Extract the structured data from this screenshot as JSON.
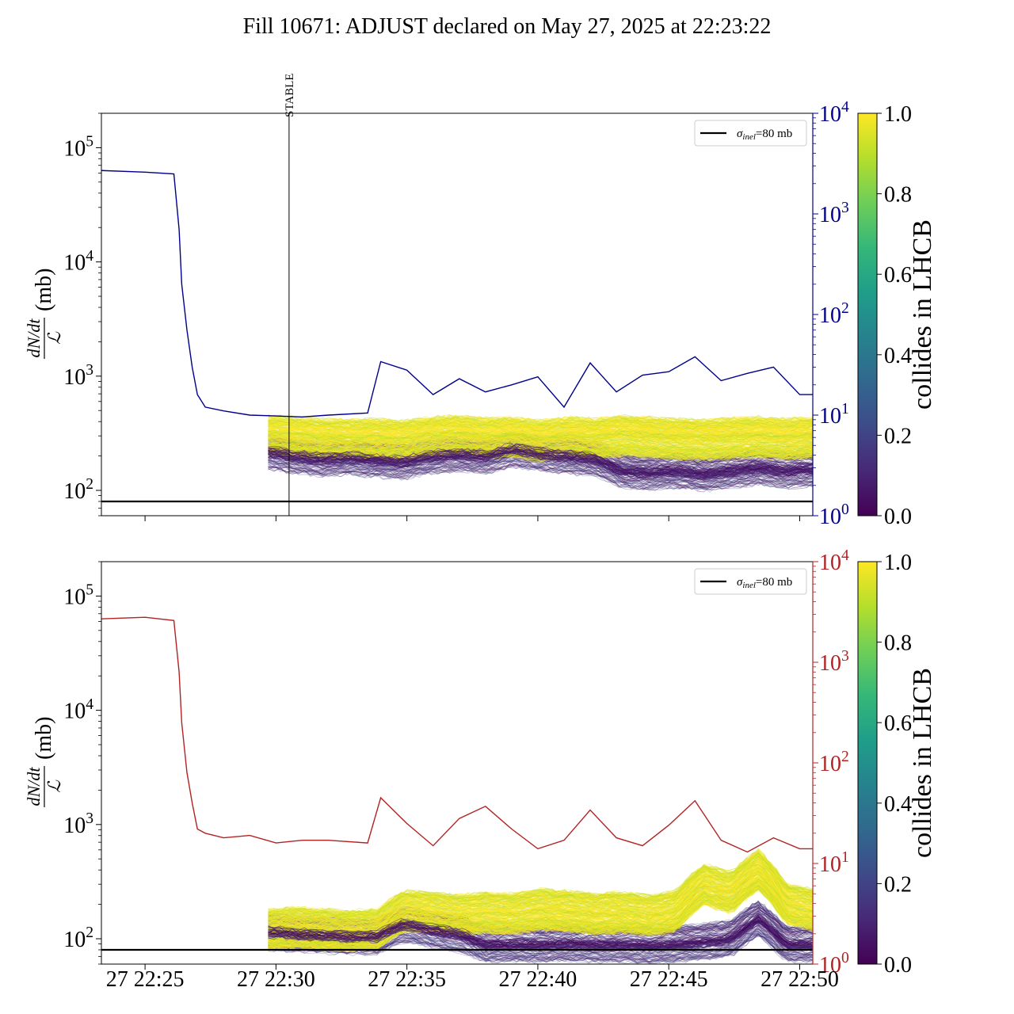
{
  "title": "Fill 10671: ADJUST declared on May 27, 2025 at 22:23:22",
  "colors": {
    "top_line": "#00008b",
    "bottom_line": "#b22222",
    "viridis": [
      "#440154",
      "#482878",
      "#3e4a89",
      "#31688e",
      "#26828e",
      "#1f9e89",
      "#35b779",
      "#6ece58",
      "#b5de2b",
      "#fde725"
    ]
  },
  "chart_data": [
    {
      "type": "line",
      "panel": "top",
      "ylabel_num": "dN/dt",
      "ylabel_den": "ℒ",
      "ylabel_unit": "(mb)",
      "yscale": "log",
      "ylim": [
        60,
        200000
      ],
      "yticks": [
        {
          "b": "10",
          "e": "2"
        },
        {
          "b": "10",
          "e": "3"
        },
        {
          "b": "10",
          "e": "4"
        },
        {
          "b": "10",
          "e": "5"
        }
      ],
      "y2scale": "log",
      "y2lim": [
        1,
        10000
      ],
      "y2ticks": [
        {
          "b": "10",
          "e": "0"
        },
        {
          "b": "10",
          "e": "1"
        },
        {
          "b": "10",
          "e": "2"
        },
        {
          "b": "10",
          "e": "3"
        },
        {
          "b": "10",
          "e": "4"
        }
      ],
      "xlim": [
        "2025-05-27 22:23:20",
        "2025-05-27 22:50:30"
      ],
      "xtick_times": [
        "22:25",
        "22:30",
        "22:35",
        "22:40",
        "22:45",
        "22:50"
      ],
      "xticklabels_visible": false,
      "stable_marker": {
        "time": "2025-05-27 22:30:30",
        "label": "STABLE"
      },
      "reference_line": {
        "value": 80,
        "legend": "σ",
        "legend_sub": "inel",
        "legend_tail": "=80 mb"
      },
      "legend_placement": "top-right",
      "series_main": {
        "minutes_after_22_23": [
          0.3,
          2.0,
          3.1,
          3.3,
          3.4,
          3.6,
          3.8,
          4.0,
          4.3,
          5.0,
          6.0,
          7.0,
          8.0,
          9.0,
          10.5,
          11.0,
          12.0,
          13.0,
          14.0,
          15.0,
          16.0,
          17.0,
          18.0,
          19.0,
          20.0,
          21.0,
          22.0,
          23.0,
          24.0,
          25.0,
          26.0,
          27.0,
          27.5
        ],
        "values_right_axis": [
          2700,
          2600,
          2500,
          700,
          200,
          70,
          30,
          16,
          12,
          11,
          10,
          9.8,
          9.6,
          10,
          10.5,
          34,
          28,
          16,
          23,
          17,
          20,
          24,
          12,
          33,
          17,
          25,
          27,
          38,
          22,
          26,
          30,
          16,
          16
        ]
      },
      "band": {
        "start_minutes_after_22_23": 6.7,
        "end_minutes_after_22_23": 27.5,
        "collides_median": [
          300,
          290,
          280,
          275,
          280,
          270,
          290,
          300,
          285,
          290,
          270,
          290,
          280,
          300,
          290,
          280,
          275,
          285,
          290,
          280,
          290
        ],
        "noncollide_median": [
          220,
          200,
          190,
          195,
          185,
          180,
          200,
          210,
          200,
          230,
          210,
          200,
          190,
          150,
          145,
          150,
          140,
          150,
          160,
          150,
          155
        ]
      },
      "colorbar": {
        "label": "collides in LHCB",
        "ticks": [
          "0.0",
          "0.2",
          "0.4",
          "0.6",
          "0.8",
          "1.0"
        ]
      }
    },
    {
      "type": "line",
      "panel": "bottom",
      "ylabel_num": "dN/dt",
      "ylabel_den": "ℒ",
      "ylabel_unit": "(mb)",
      "yscale": "log",
      "ylim": [
        60,
        200000
      ],
      "yticks": [
        {
          "b": "10",
          "e": "2"
        },
        {
          "b": "10",
          "e": "3"
        },
        {
          "b": "10",
          "e": "4"
        },
        {
          "b": "10",
          "e": "5"
        }
      ],
      "y2scale": "log",
      "y2lim": [
        1,
        10000
      ],
      "y2ticks": [
        {
          "b": "10",
          "e": "0"
        },
        {
          "b": "10",
          "e": "1"
        },
        {
          "b": "10",
          "e": "2"
        },
        {
          "b": "10",
          "e": "3"
        },
        {
          "b": "10",
          "e": "4"
        }
      ],
      "xlim": [
        "2025-05-27 22:23:20",
        "2025-05-27 22:50:30"
      ],
      "xticklabels": [
        "27 22:25",
        "27 22:30",
        "27 22:35",
        "27 22:40",
        "27 22:45",
        "27 22:50"
      ],
      "xtick_times": [
        "22:25",
        "22:30",
        "22:35",
        "22:40",
        "22:45",
        "22:50"
      ],
      "reference_line": {
        "value": 80,
        "legend": "σ",
        "legend_sub": "inel",
        "legend_tail": "=80 mb"
      },
      "legend_placement": "top-right",
      "series_main": {
        "minutes_after_22_23": [
          0.3,
          2.0,
          3.1,
          3.3,
          3.4,
          3.6,
          3.8,
          4.0,
          4.3,
          5.0,
          6.0,
          7.0,
          8.0,
          9.0,
          10.5,
          11.0,
          12.0,
          13.0,
          14.0,
          15.0,
          16.0,
          17.0,
          18.0,
          19.0,
          20.0,
          21.0,
          22.0,
          23.0,
          24.0,
          25.0,
          26.0,
          27.0,
          27.5
        ],
        "values_right_axis": [
          2700,
          2800,
          2600,
          800,
          250,
          80,
          40,
          22,
          20,
          18,
          19,
          16,
          17,
          17,
          16,
          45,
          25,
          15,
          28,
          37,
          22,
          14,
          17,
          34,
          18,
          15,
          24,
          42,
          17,
          13,
          18,
          14,
          14
        ]
      },
      "band": {
        "start_minutes_after_22_23": 6.7,
        "end_minutes_after_22_23": 27.5,
        "collides_median": [
          120,
          125,
          120,
          118,
          120,
          175,
          170,
          160,
          170,
          165,
          180,
          175,
          165,
          170,
          160,
          175,
          300,
          250,
          400,
          200,
          180
        ],
        "noncollide_median": [
          115,
          110,
          108,
          105,
          105,
          135,
          120,
          110,
          90,
          90,
          90,
          92,
          90,
          90,
          88,
          90,
          95,
          100,
          150,
          90,
          90
        ]
      },
      "colorbar": {
        "label": "collides in LHCB",
        "ticks": [
          "0.0",
          "0.2",
          "0.4",
          "0.6",
          "0.8",
          "1.0"
        ]
      }
    }
  ]
}
